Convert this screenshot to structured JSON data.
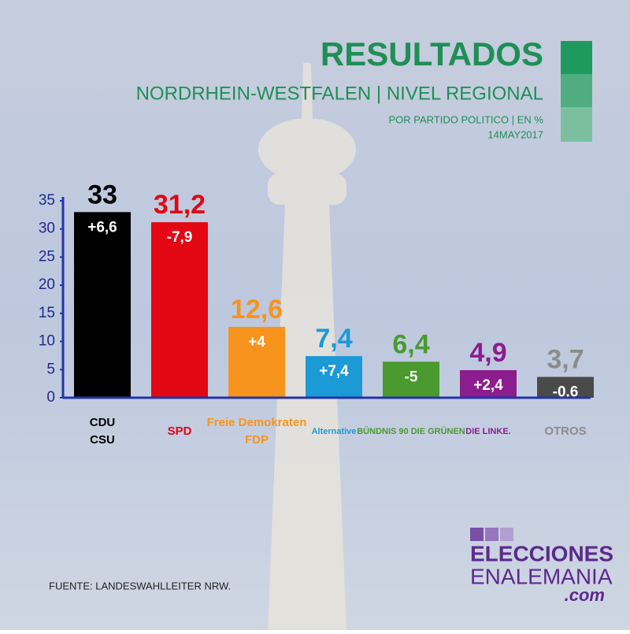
{
  "chart_data": {
    "type": "bar",
    "title": "RESULTADOS",
    "subtitle": "NORDRHEIN-WESTFALEN | NIVEL REGIONAL",
    "note": "POR PARTIDO POLITICO | EN %",
    "date": "14MAY2017",
    "categories": [
      [
        "CDU",
        "CSU"
      ],
      [
        "SPD"
      ],
      [
        "Freie Demokraten",
        "FDP"
      ],
      [
        "Alternative"
      ],
      [
        "BÜNDNIS 90 DIE GRÜNEN"
      ],
      [
        "DIE LINKE."
      ],
      [
        "OTROS"
      ]
    ],
    "values": [
      33,
      31.2,
      12.6,
      7.4,
      6.4,
      4.9,
      3.7
    ],
    "value_labels": [
      "33",
      "31,2",
      "12,6",
      "7,4",
      "6,4",
      "4,9",
      "3,7"
    ],
    "changes": [
      "+6,6",
      "-7,9",
      "+4",
      "+7,4",
      "-5",
      "+2,4",
      "-0,6"
    ],
    "colors": [
      "#000000",
      "#e30613",
      "#f7941d",
      "#1b9ad6",
      "#4a9a2f",
      "#8b1d8e",
      "#4a4a4a"
    ],
    "label_colors": [
      "#000000",
      "#e30613",
      "#f7941d",
      "#1b9ad6",
      "#4a9a2f",
      "#8b1d8e",
      "#8c8c8c"
    ],
    "ylim": [
      0,
      35
    ],
    "yticks": [
      0,
      5,
      10,
      15,
      20,
      25,
      30,
      35
    ],
    "source": "FUENTE: LANDESWAHLLEITER NRW.",
    "brand": [
      "ELECCIONES",
      "ENALEMANIA",
      ".com"
    ]
  }
}
